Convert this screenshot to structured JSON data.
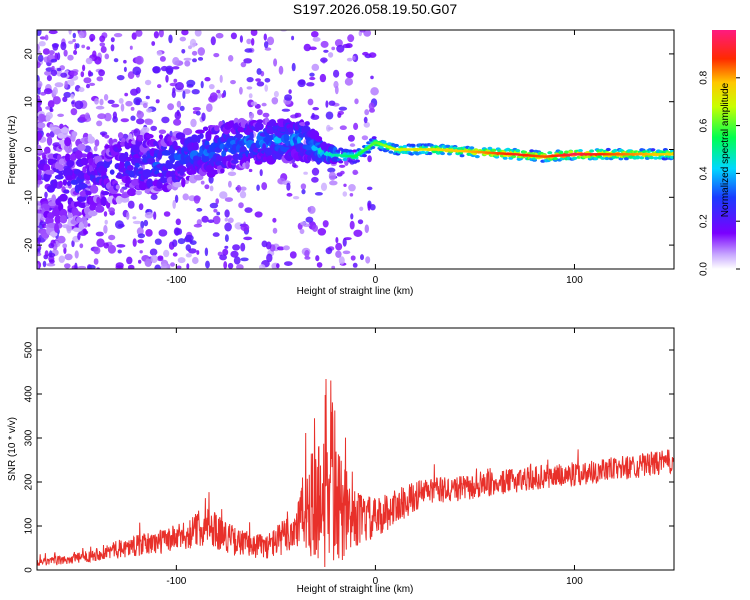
{
  "title": "S197.2026.058.19.50.G07",
  "colors": {
    "snr_line": "#e8302a",
    "background_plot": "#ffffff",
    "axis": "#000000"
  },
  "chart_data": [
    {
      "type": "heatmap",
      "title": "S197.2026.058.19.50.G07",
      "xlabel": "Height of straight line (km)",
      "ylabel": "Frequency (Hz)",
      "xlim": [
        -170,
        150
      ],
      "ylim": [
        -25,
        25
      ],
      "xticks": [
        -100,
        0,
        100
      ],
      "yticks": [
        -20,
        -10,
        0,
        10,
        20
      ],
      "colorbar": {
        "label": "Normalized spectral amplitude",
        "range": [
          0,
          1
        ],
        "ticks": [
          "0.0",
          "0.2",
          "0.4",
          "0.6",
          "0.8"
        ],
        "colormap": "rainbow (white at 0, purple, blue, cyan, green, yellow, orange, red, magenta at 1)"
      },
      "ridge": [
        {
          "x": -170,
          "freq": -6,
          "amp": 0.15,
          "spread": 14
        },
        {
          "x": -150,
          "freq": -7,
          "amp": 0.2,
          "spread": 10
        },
        {
          "x": -130,
          "freq": -4,
          "amp": 0.22,
          "spread": 7
        },
        {
          "x": -110,
          "freq": -3,
          "amp": 0.28,
          "spread": 6
        },
        {
          "x": -90,
          "freq": -1,
          "amp": 0.3,
          "spread": 5
        },
        {
          "x": -70,
          "freq": 1,
          "amp": 0.32,
          "spread": 5
        },
        {
          "x": -50,
          "freq": 2,
          "amp": 0.35,
          "spread": 4
        },
        {
          "x": -35,
          "freq": 2,
          "amp": 0.35,
          "spread": 4
        },
        {
          "x": -25,
          "freq": -1,
          "amp": 0.45,
          "spread": 1.5
        },
        {
          "x": -10,
          "freq": -1.5,
          "amp": 0.55,
          "spread": 1.2
        },
        {
          "x": 0,
          "freq": 1.5,
          "amp": 0.6,
          "spread": 1.2
        },
        {
          "x": 10,
          "freq": 0,
          "amp": 0.7,
          "spread": 1
        },
        {
          "x": 30,
          "freq": 0,
          "amp": 0.75,
          "spread": 1
        },
        {
          "x": 50,
          "freq": -0.5,
          "amp": 0.8,
          "spread": 1
        },
        {
          "x": 70,
          "freq": -1,
          "amp": 0.9,
          "spread": 1
        },
        {
          "x": 85,
          "freq": -1.5,
          "amp": 0.85,
          "spread": 1
        },
        {
          "x": 100,
          "freq": -1,
          "amp": 0.95,
          "spread": 1
        },
        {
          "x": 120,
          "freq": -1,
          "amp": 0.85,
          "spread": 1
        },
        {
          "x": 150,
          "freq": -1,
          "amp": 0.75,
          "spread": 1
        }
      ]
    },
    {
      "type": "line",
      "xlabel": "Height of straight line (km)",
      "ylabel": "SNR (10 * v/v)",
      "xlim": [
        -170,
        150
      ],
      "ylim": [
        0,
        550
      ],
      "xticks": [
        -100,
        0,
        100
      ],
      "yticks": [
        0,
        100,
        200,
        300,
        400,
        500
      ],
      "series": [
        {
          "name": "SNR",
          "envelope": [
            {
              "x": -170,
              "base": 15,
              "noise": 10
            },
            {
              "x": -150,
              "base": 25,
              "noise": 15
            },
            {
              "x": -130,
              "base": 45,
              "noise": 25
            },
            {
              "x": -110,
              "base": 60,
              "noise": 35
            },
            {
              "x": -95,
              "base": 75,
              "noise": 40
            },
            {
              "x": -85,
              "base": 100,
              "noise": 60
            },
            {
              "x": -70,
              "base": 60,
              "noise": 40
            },
            {
              "x": -55,
              "base": 50,
              "noise": 35
            },
            {
              "x": -42,
              "base": 80,
              "noise": 60
            },
            {
              "x": -35,
              "base": 130,
              "noise": 120
            },
            {
              "x": -28,
              "base": 140,
              "noise": 200
            },
            {
              "x": -23,
              "base": 220,
              "noise": 320
            },
            {
              "x": -18,
              "base": 120,
              "noise": 160
            },
            {
              "x": -10,
              "base": 110,
              "noise": 80
            },
            {
              "x": 0,
              "base": 110,
              "noise": 60
            },
            {
              "x": 10,
              "base": 140,
              "noise": 50
            },
            {
              "x": 25,
              "base": 175,
              "noise": 40
            },
            {
              "x": 50,
              "base": 185,
              "noise": 35
            },
            {
              "x": 75,
              "base": 205,
              "noise": 35
            },
            {
              "x": 100,
              "base": 215,
              "noise": 35
            },
            {
              "x": 125,
              "base": 230,
              "noise": 35
            },
            {
              "x": 150,
              "base": 245,
              "noise": 35
            }
          ]
        }
      ]
    }
  ]
}
